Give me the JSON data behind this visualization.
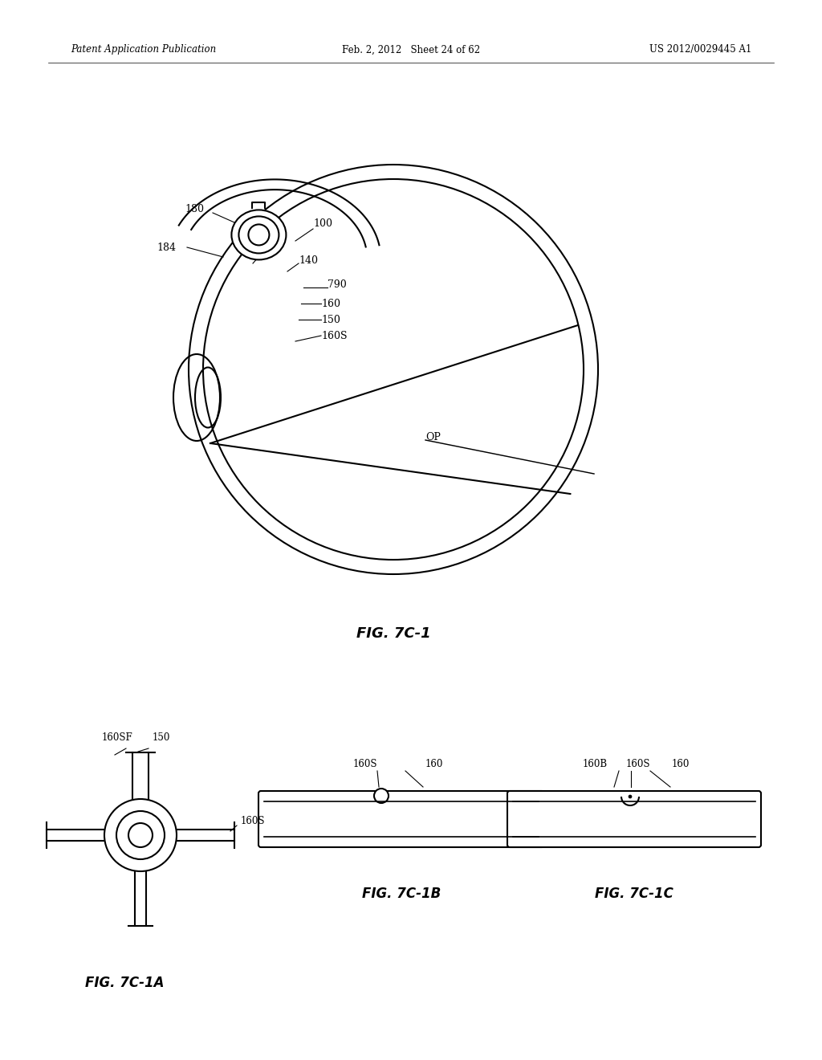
{
  "background_color": "#ffffff",
  "header_left": "Patent Application Publication",
  "header_center": "Feb. 2, 2012   Sheet 24 of 62",
  "header_right": "US 2012/0029445 A1",
  "fig_label_main": "FIG. 7C-1",
  "fig_label_a": "FIG. 7C-1A",
  "fig_label_b": "FIG. 7C-1B",
  "fig_label_c": "FIG. 7C-1C"
}
